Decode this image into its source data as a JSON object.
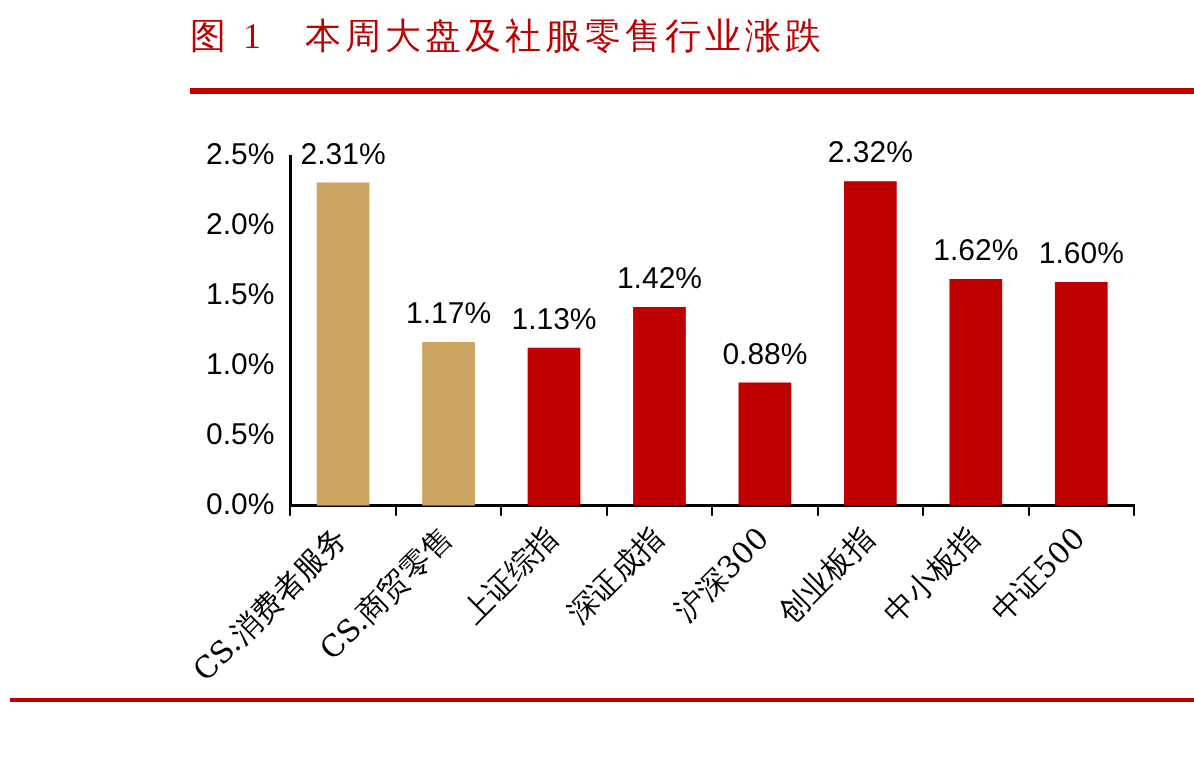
{
  "chart_data": {
    "type": "bar",
    "title": "图 1　本周大盘及社服零售行业涨跌",
    "categories": [
      "CS.消费者服务",
      "CS.商贸零售",
      "上证综指",
      "深证成指",
      "沪深300",
      "创业板指",
      "中小板指",
      "中证500"
    ],
    "values": [
      2.31,
      1.17,
      1.13,
      1.42,
      0.88,
      2.32,
      1.62,
      1.6
    ],
    "colors": [
      "#cda562",
      "#cda562",
      "#c00000",
      "#c00000",
      "#c00000",
      "#c00000",
      "#c00000",
      "#c00000"
    ],
    "value_labels": [
      "2.31%",
      "1.17%",
      "1.13%",
      "1.42%",
      "0.88%",
      "2.32%",
      "1.62%",
      "1.60%"
    ],
    "ylim": [
      0,
      2.5
    ],
    "yticks": [
      {
        "value": 0,
        "label": "0.0%"
      },
      {
        "value": 0.5,
        "label": "0.5%"
      },
      {
        "value": 1,
        "label": "1.0%"
      },
      {
        "value": 1.5,
        "label": "1.5%"
      },
      {
        "value": 2,
        "label": "2.0%"
      },
      {
        "value": 2.5,
        "label": "2.5%"
      }
    ],
    "grid": false,
    "legend": false
  }
}
